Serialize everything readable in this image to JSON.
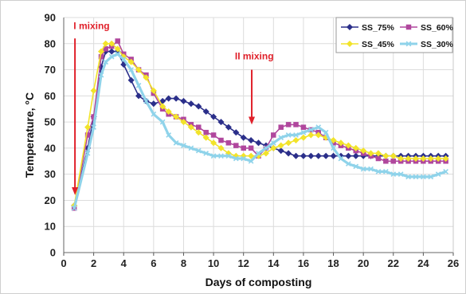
{
  "chart_data": {
    "type": "line",
    "xlabel": "Days of composting",
    "ylabel": "Temperature, °C",
    "xlim": [
      0,
      26
    ],
    "ylim": [
      0,
      90
    ],
    "xticks": [
      "0",
      "2",
      "4",
      "6",
      "8",
      "10",
      "12",
      "14",
      "16",
      "18",
      "20",
      "22",
      "24",
      "26"
    ],
    "yticks": [
      "0",
      "10",
      "20",
      "30",
      "40",
      "50",
      "60",
      "70",
      "80",
      "90"
    ],
    "grid": true,
    "legend_position": "top-right",
    "annotations": [
      {
        "text": "I mixing",
        "x": 0.6,
        "y": 85,
        "color": "#e0202a"
      },
      {
        "text": "II mixing",
        "x": 12.4,
        "y": 74,
        "color": "#e0202a"
      }
    ],
    "series": [
      {
        "name": "SS_75%",
        "color": "#2b2f8a",
        "marker": "diamond",
        "x": [
          0.7,
          1.6,
          2.0,
          2.5,
          2.8,
          3.2,
          3.6,
          4.0,
          4.5,
          5.0,
          5.5,
          6.0,
          6.6,
          7.0,
          7.5,
          8.0,
          8.5,
          9.0,
          9.5,
          10.0,
          10.5,
          11.0,
          11.5,
          12.0,
          12.5,
          13.0,
          13.5,
          14.0,
          14.5,
          15.0,
          15.5,
          16.0,
          16.5,
          17.0,
          17.5,
          18.0,
          18.5,
          19.0,
          19.5,
          20.0,
          20.5,
          21.0,
          21.5,
          22.0,
          22.5,
          23.0,
          23.5,
          24.0,
          24.5,
          25.0,
          25.5
        ],
        "y": [
          18,
          40,
          52,
          71,
          77,
          77,
          77,
          72,
          66,
          60,
          58,
          57,
          58,
          59,
          59,
          58,
          57,
          56,
          54,
          52,
          50,
          48,
          46,
          44,
          43,
          42,
          41,
          40,
          39,
          38,
          37,
          37,
          37,
          37,
          37,
          37,
          37,
          37,
          37,
          37,
          37,
          37,
          37,
          37,
          37,
          37,
          37,
          37,
          37,
          37,
          37
        ]
      },
      {
        "name": "SS_60%",
        "color": "#b0479d",
        "marker": "square",
        "x": [
          0.7,
          1.6,
          2.0,
          2.5,
          2.8,
          3.2,
          3.6,
          4.0,
          4.5,
          5.0,
          5.5,
          6.0,
          6.6,
          7.0,
          7.5,
          8.0,
          8.5,
          9.0,
          9.5,
          10.0,
          10.5,
          11.0,
          11.5,
          12.0,
          12.5,
          13.0,
          13.5,
          14.0,
          14.5,
          15.0,
          15.5,
          16.0,
          16.5,
          17.0,
          17.5,
          18.0,
          18.5,
          19.0,
          19.5,
          20.0,
          20.5,
          21.0,
          21.5,
          22.0,
          22.5,
          23.0,
          23.5,
          24.0,
          24.5,
          25.0,
          25.5
        ],
        "y": [
          17,
          45,
          52,
          75,
          78,
          79,
          81,
          76,
          74,
          70,
          68,
          61,
          55,
          53,
          52,
          51,
          49,
          48,
          46,
          45,
          43,
          42,
          41,
          40,
          40,
          37,
          40,
          45,
          48,
          49,
          49,
          48,
          47,
          46,
          44,
          42,
          41,
          40,
          39,
          38,
          37,
          36,
          35,
          35,
          35,
          35,
          35,
          35,
          35,
          35,
          35
        ]
      },
      {
        "name": "SS_45%",
        "color": "#f2e32a",
        "marker": "diamond",
        "x": [
          0.7,
          1.6,
          2.0,
          2.5,
          2.8,
          3.2,
          3.6,
          4.0,
          4.5,
          5.0,
          5.5,
          6.0,
          6.6,
          7.0,
          7.5,
          8.0,
          8.5,
          9.0,
          9.5,
          10.0,
          10.5,
          11.0,
          11.5,
          12.0,
          12.5,
          13.0,
          13.5,
          14.0,
          14.5,
          15.0,
          15.5,
          16.0,
          16.5,
          17.0,
          17.5,
          18.0,
          18.5,
          19.0,
          19.5,
          20.0,
          20.5,
          21.0,
          21.5,
          22.0,
          22.5,
          23.0,
          23.5,
          24.0,
          24.5,
          25.0,
          25.5
        ],
        "y": [
          18,
          48,
          62,
          77,
          80,
          80,
          78,
          75,
          73,
          70,
          67,
          62,
          56,
          54,
          52,
          50,
          48,
          46,
          44,
          42,
          40,
          38,
          37,
          37,
          37,
          37,
          38,
          40,
          41,
          42,
          43,
          44,
          45,
          45,
          44,
          43,
          42,
          41,
          40,
          39,
          38,
          38,
          37,
          37,
          36,
          36,
          36,
          36,
          36,
          36,
          36
        ]
      },
      {
        "name": "SS_30%",
        "color": "#8fd3ea",
        "marker": "cross",
        "x": [
          0.7,
          1.6,
          2.0,
          2.5,
          2.8,
          3.2,
          3.6,
          4.0,
          4.5,
          5.0,
          5.5,
          6.0,
          6.6,
          7.0,
          7.5,
          8.0,
          8.5,
          9.0,
          9.5,
          10.0,
          10.5,
          11.0,
          11.5,
          12.0,
          12.5,
          13.0,
          13.5,
          14.0,
          14.5,
          15.0,
          15.5,
          16.0,
          16.5,
          17.0,
          17.5,
          18.0,
          18.5,
          19.0,
          19.5,
          20.0,
          20.5,
          21.0,
          21.5,
          22.0,
          22.5,
          23.0,
          23.5,
          24.0,
          24.5,
          25.0,
          25.5
        ],
        "y": [
          17,
          38,
          48,
          68,
          73,
          75,
          76,
          74,
          70,
          64,
          58,
          53,
          50,
          45,
          42,
          41,
          40,
          39,
          38,
          37,
          37,
          37,
          36,
          36,
          35,
          38,
          40,
          42,
          44,
          45,
          45,
          46,
          47,
          48,
          46,
          40,
          36,
          34,
          33,
          32,
          32,
          31,
          31,
          30,
          30,
          29,
          29,
          29,
          29,
          30,
          31
        ]
      }
    ]
  },
  "legend": {
    "items": [
      "SS_75%",
      "SS_60%",
      "SS_45%",
      "SS_30%"
    ]
  }
}
